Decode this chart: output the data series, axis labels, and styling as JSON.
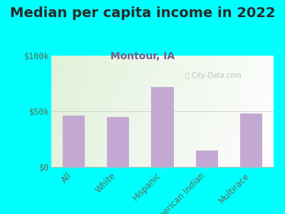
{
  "title": "Median per capita income in 2022",
  "subtitle": "Montour, IA",
  "categories": [
    "All",
    "White",
    "Hispanic",
    "American Indian",
    "Multirace"
  ],
  "values": [
    46000,
    45000,
    72000,
    15000,
    48000
  ],
  "bar_color": "#c4a8d4",
  "background_outer": "#00ffff",
  "title_color": "#2a2a2a",
  "subtitle_color": "#7a5a8a",
  "tick_label_color": "#5a6e5a",
  "watermark_text": "City-Data.com",
  "ylim": [
    0,
    100000
  ],
  "yticks": [
    0,
    50000,
    100000
  ],
  "ytick_labels": [
    "$0",
    "$50k",
    "$100k"
  ],
  "title_fontsize": 14,
  "subtitle_fontsize": 10,
  "tick_fontsize": 8.5
}
